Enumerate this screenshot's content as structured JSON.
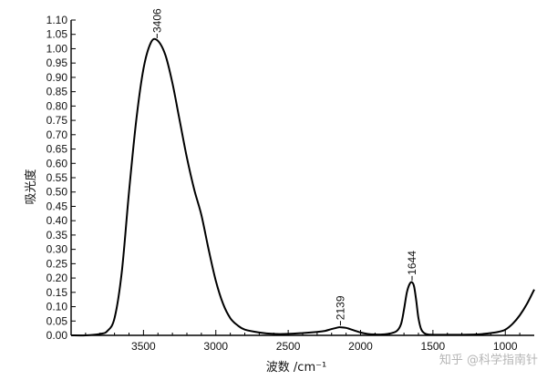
{
  "chart_data": {
    "type": "line",
    "title": "",
    "xlabel": "波数 /cm⁻¹",
    "ylabel": "吸光度",
    "xlim": [
      4000,
      800
    ],
    "ylim": [
      0,
      1.1
    ],
    "x_reversed": true,
    "x_ticks": [
      3500,
      3000,
      2500,
      2000,
      1500,
      1000
    ],
    "x_tick_labels": [
      "3500",
      "3000",
      "2500",
      "2000",
      "1500",
      "1000"
    ],
    "y_ticks": [
      0.0,
      0.05,
      0.1,
      0.15,
      0.2,
      0.25,
      0.3,
      0.35,
      0.4,
      0.45,
      0.5,
      0.55,
      0.6,
      0.65,
      0.7,
      0.75,
      0.8,
      0.85,
      0.9,
      0.95,
      1.0,
      1.05,
      1.1
    ],
    "y_tick_labels": [
      "0.00",
      "0.05",
      "0.10",
      "0.15",
      "0.20",
      "0.25",
      "0.30",
      "0.35",
      "0.40",
      "0.45",
      "0.50",
      "0.55",
      "0.60",
      "0.65",
      "0.70",
      "0.75",
      "0.80",
      "0.85",
      "0.90",
      "0.95",
      "1.00",
      "1.05",
      "1.10"
    ],
    "grid": false,
    "series": [
      {
        "x": [
          4000,
          3900,
          3800,
          3750,
          3700,
          3650,
          3600,
          3550,
          3500,
          3450,
          3406,
          3350,
          3300,
          3250,
          3200,
          3150,
          3100,
          3050,
          3000,
          2950,
          2900,
          2850,
          2800,
          2700,
          2600,
          2500,
          2400,
          2300,
          2250,
          2200,
          2150,
          2139,
          2100,
          2050,
          2000,
          1950,
          1900,
          1850,
          1800,
          1750,
          1720,
          1700,
          1680,
          1660,
          1644,
          1630,
          1615,
          1600,
          1580,
          1550,
          1500,
          1400,
          1300,
          1200,
          1150,
          1100,
          1050,
          1000,
          950,
          900,
          850,
          800
        ],
        "y": [
          0.0,
          0.0,
          0.005,
          0.015,
          0.06,
          0.22,
          0.5,
          0.75,
          0.93,
          1.02,
          1.03,
          0.98,
          0.88,
          0.75,
          0.62,
          0.51,
          0.42,
          0.3,
          0.19,
          0.11,
          0.06,
          0.035,
          0.02,
          0.01,
          0.005,
          0.005,
          0.008,
          0.012,
          0.015,
          0.022,
          0.028,
          0.028,
          0.026,
          0.018,
          0.01,
          0.005,
          0.003,
          0.003,
          0.006,
          0.015,
          0.04,
          0.09,
          0.15,
          0.18,
          0.185,
          0.17,
          0.12,
          0.06,
          0.02,
          0.005,
          0.002,
          0.002,
          0.002,
          0.003,
          0.005,
          0.008,
          0.012,
          0.02,
          0.04,
          0.07,
          0.11,
          0.16
        ]
      }
    ],
    "annotations": [
      {
        "text": "3406",
        "x": 3406,
        "y": 1.03
      },
      {
        "text": "2139",
        "x": 2139,
        "y": 0.028
      },
      {
        "text": "1644",
        "x": 1644,
        "y": 0.185
      }
    ]
  },
  "watermark": "知乎 @科学指南针",
  "colors": {
    "line": "#000000",
    "axis": "#000000",
    "watermark": "#b5b5b5"
  }
}
